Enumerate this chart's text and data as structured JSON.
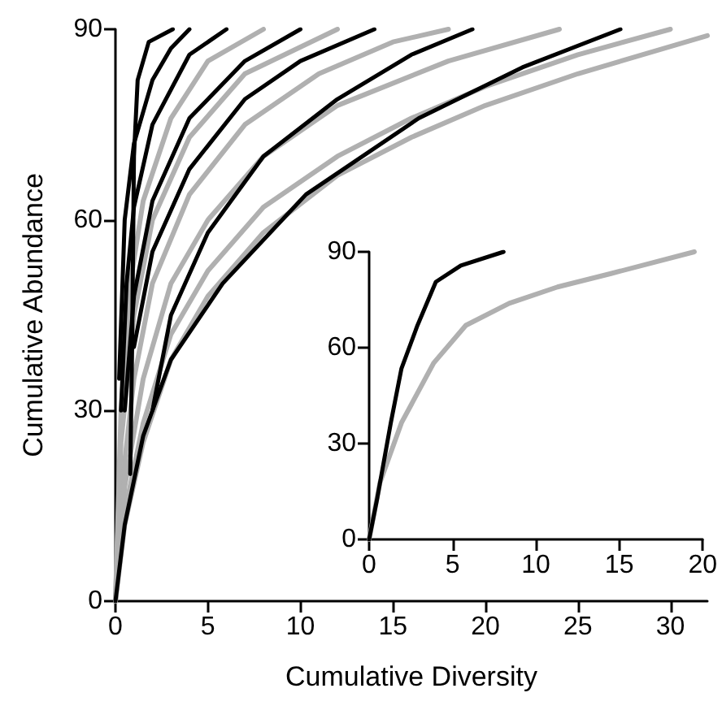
{
  "chart_data": [
    {
      "type": "line",
      "xlabel": "Cumulative Diversity",
      "ylabel": "Cumulative Abundance",
      "xlim": [
        0,
        32
      ],
      "ylim": [
        0,
        90
      ],
      "xticks": [
        0,
        5,
        10,
        15,
        20,
        25,
        30
      ],
      "yticks": [
        0,
        30,
        60,
        90
      ],
      "marker": "none",
      "grid": false,
      "series": [
        {
          "color": "#b0b0b0",
          "x": [
            0,
            0.5,
            1.5,
            3,
            5,
            8,
            12,
            16,
            20,
            25,
            32
          ],
          "values": [
            0,
            12,
            25,
            38,
            48,
            58,
            67,
            73,
            78,
            83,
            89
          ]
        },
        {
          "color": "#b0b0b0",
          "x": [
            0,
            0.5,
            1.5,
            3,
            5,
            8,
            12,
            16,
            20,
            25,
            30
          ],
          "values": [
            0,
            14,
            28,
            42,
            52,
            62,
            70,
            76,
            81,
            86,
            90
          ]
        },
        {
          "color": "#b0b0b0",
          "x": [
            0,
            0.5,
            1.5,
            3,
            5,
            8,
            12,
            18,
            24
          ],
          "values": [
            0,
            18,
            35,
            50,
            60,
            70,
            78,
            85,
            90
          ]
        },
        {
          "color": "#b0b0b0",
          "x": [
            0,
            0.5,
            1,
            2,
            4,
            7,
            11,
            15,
            18
          ],
          "values": [
            0,
            22,
            35,
            50,
            64,
            75,
            83,
            88,
            90
          ]
        },
        {
          "color": "#b0b0b0",
          "x": [
            0,
            0.3,
            1,
            2,
            4,
            7,
            12
          ],
          "values": [
            0,
            25,
            45,
            60,
            73,
            83,
            90
          ]
        },
        {
          "color": "#b0b0b0",
          "x": [
            0,
            0.3,
            0.8,
            1.5,
            3,
            5,
            8
          ],
          "values": [
            0,
            30,
            50,
            63,
            76,
            85,
            90
          ]
        },
        {
          "color": "#000000",
          "x": [
            0,
            0.5,
            1.5,
            3,
            5.8,
            10.3,
            16.4,
            22,
            27.3
          ],
          "values": [
            0,
            12,
            26,
            38,
            50,
            64,
            76,
            84,
            90
          ]
        },
        {
          "color": "#000000",
          "x": [
            2,
            3,
            5,
            8,
            12,
            16,
            19.3
          ],
          "values": [
            30,
            45,
            58,
            70,
            79,
            86,
            90
          ]
        },
        {
          "color": "#000000",
          "x": [
            1,
            2,
            4,
            7,
            10,
            14
          ],
          "values": [
            40,
            55,
            68,
            79,
            85,
            90
          ]
        },
        {
          "color": "#000000",
          "x": [
            0.5,
            1,
            2,
            4,
            7,
            10
          ],
          "values": [
            30,
            48,
            63,
            76,
            85,
            90
          ]
        },
        {
          "color": "#000000",
          "x": [
            0.3,
            0.6,
            1,
            2,
            4,
            6
          ],
          "values": [
            30,
            50,
            62,
            75,
            86,
            90
          ]
        },
        {
          "color": "#000000",
          "x": [
            0.2,
            0.5,
            1,
            2,
            3,
            4
          ],
          "values": [
            35,
            60,
            72,
            82,
            87,
            90
          ]
        },
        {
          "color": "#000000",
          "x": [
            0.8,
            0.9,
            1,
            1.2,
            1.8,
            3.1
          ],
          "values": [
            20,
            40,
            70,
            82,
            88,
            90
          ]
        }
      ]
    },
    {
      "type": "line",
      "xlim": [
        0,
        20
      ],
      "ylim": [
        0,
        90
      ],
      "xticks": [
        0,
        5,
        10,
        15,
        20
      ],
      "yticks": [
        0,
        30,
        60,
        90
      ],
      "marker": "none",
      "grid": false,
      "series": [
        {
          "color": "#b0b0b0",
          "x": [
            0,
            0.65,
            1.94,
            3.87,
            5.8,
            8.4,
            11.3,
            14.5,
            19.5
          ],
          "values": [
            0,
            17.8,
            36.5,
            55.2,
            67,
            73.9,
            79,
            83.2,
            90
          ]
        },
        {
          "color": "#000000",
          "x": [
            0,
            0.48,
            1.3,
            1.94,
            2.9,
            4,
            5.5,
            8.06
          ],
          "values": [
            0,
            12.7,
            36.5,
            53.5,
            67,
            80.6,
            85.7,
            90
          ]
        }
      ]
    }
  ]
}
